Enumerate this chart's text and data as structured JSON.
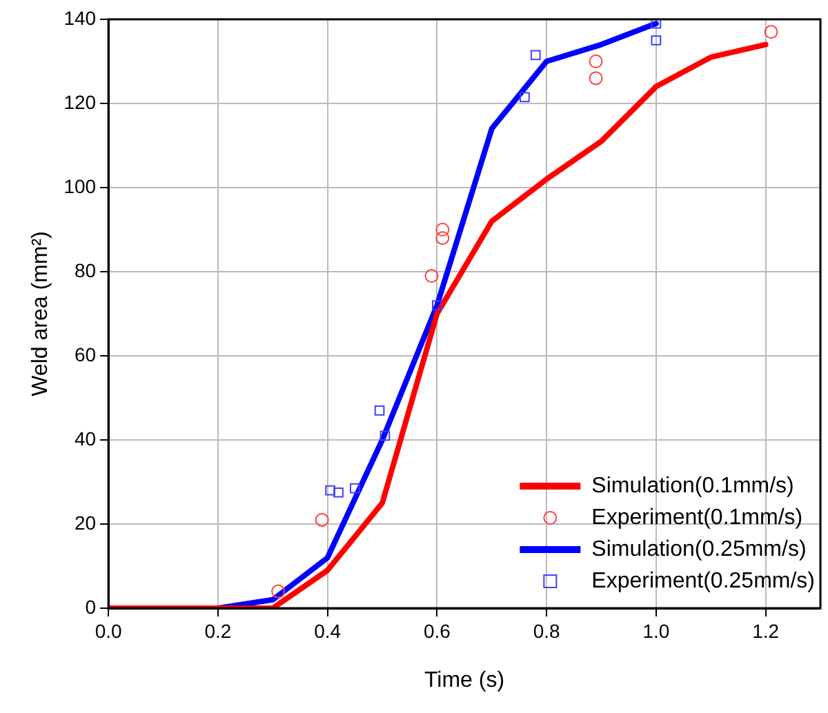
{
  "chart_data": {
    "type": "line",
    "xlabel": "Time (s)",
    "ylabel": "Weld area (mm²)",
    "xlim": [
      0,
      1.3
    ],
    "ylim": [
      0,
      140
    ],
    "xticks": [
      {
        "value": 0,
        "label": "0.0"
      },
      {
        "value": 0.2,
        "label": "0.2"
      },
      {
        "value": 0.4,
        "label": "0.4"
      },
      {
        "value": 0.6,
        "label": "0.6"
      },
      {
        "value": 0.8,
        "label": "0.8"
      },
      {
        "value": 1,
        "label": "1.0"
      },
      {
        "value": 1.2,
        "label": "1.2"
      }
    ],
    "yticks": [
      0,
      20,
      40,
      60,
      80,
      100,
      120,
      140
    ],
    "grid": true,
    "legend": "bottom right",
    "series": [
      {
        "name": "Simulation(0.1mm/s)",
        "marker": "none",
        "color": "#ff0000",
        "x": [
          0,
          0.2,
          0.3,
          0.4,
          0.5,
          0.6,
          0.7,
          0.8,
          0.9,
          1.0,
          1.1,
          1.2
        ],
        "values": [
          0,
          0,
          0,
          9,
          25,
          70,
          92,
          102,
          111,
          124,
          131,
          134
        ]
      },
      {
        "name": "Experiment(0.1mm/s)",
        "type": "scatter",
        "marker": "circle",
        "color": "#ff4040",
        "x": [
          0.31,
          0.39,
          0.59,
          0.61,
          0.61,
          0.89,
          0.89,
          1.21
        ],
        "values": [
          4,
          21,
          79,
          88,
          90,
          130,
          126,
          137
        ]
      },
      {
        "name": "Simulation(0.25mm/s)",
        "marker": "none",
        "color": "#0000ff",
        "x": [
          0,
          0.2,
          0.3,
          0.4,
          0.5,
          0.6,
          0.7,
          0.8,
          0.9,
          1.0
        ],
        "values": [
          0,
          0,
          2,
          12,
          40,
          72,
          114,
          130,
          134,
          139
        ]
      },
      {
        "name": "Experiment(0.25mm/s)",
        "type": "scatter",
        "marker": "square",
        "color": "#4040ff",
        "x": [
          0.405,
          0.42,
          0.45,
          0.495,
          0.505,
          0.6,
          0.76,
          0.78,
          1.0,
          1.0
        ],
        "values": [
          28,
          27.5,
          28.5,
          47,
          41,
          72,
          121.5,
          131.5,
          139,
          135
        ]
      }
    ]
  }
}
